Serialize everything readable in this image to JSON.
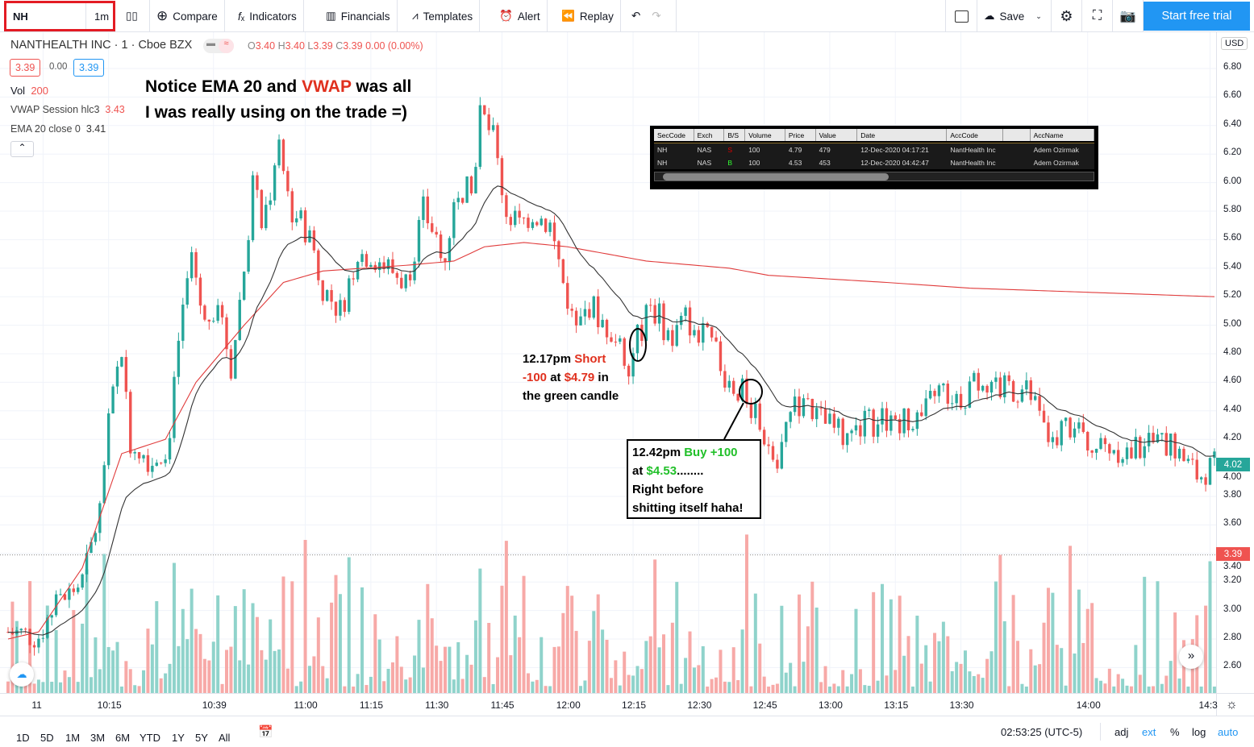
{
  "toolbar": {
    "symbol": "NH",
    "interval": "1m",
    "compare": "Compare",
    "indicators": "Indicators",
    "financials": "Financials",
    "templates": "Templates",
    "alert": "Alert",
    "replay": "Replay",
    "save": "Save",
    "trial": "Start free trial"
  },
  "legend": {
    "title": "NANTHEALTH INC · 1 · Cboe BZX",
    "o_label": "O",
    "o": "3.40",
    "h_label": "H",
    "h": "3.40",
    "l_label": "L",
    "l": "3.39",
    "c_label": "C",
    "c": "3.39",
    "change": "0.00 (0.00%)",
    "bid": "3.39",
    "spread": "0.00",
    "ask": "3.39",
    "vol_label": "Vol",
    "vol": "200",
    "vwap_label": "VWAP Session hlc3",
    "vwap": "3.43",
    "ema_label": "EMA 20 close 0",
    "ema": "3.41"
  },
  "annotations": {
    "headline_1a": "Notice EMA 20 and ",
    "headline_1b": "VWAP",
    "headline_1c": " was all",
    "headline_2": "I was really using on the trade =)",
    "short_1": "12.17pm ",
    "short_2": "Short",
    "short_3": "-100",
    "short_4": " at ",
    "short_5": "$4.79",
    "short_6": " in",
    "short_7": "the green candle",
    "buy_1": "12.42pm ",
    "buy_2": "Buy +100",
    "buy_3": "at ",
    "buy_4": "$4.53",
    "buy_5": "........",
    "buy_6": "Right before",
    "buy_7": "shitting itself haha!"
  },
  "trades": {
    "headers": [
      "SecCode",
      "Exch",
      "B/S",
      "Volume",
      "Price",
      "Value",
      "Date",
      "AccCode",
      "",
      "AccName"
    ],
    "rows": [
      [
        "NH",
        "NAS",
        "S",
        "100",
        "4.79",
        "479",
        "12-Dec-2020 04:17:21",
        "NantHealth Inc",
        "",
        "Adem Ozirmak"
      ],
      [
        "NH",
        "NAS",
        "B",
        "100",
        "4.53",
        "453",
        "12-Dec-2020 04:42:47",
        "NantHealth Inc",
        "",
        "Adem Ozirmak"
      ]
    ]
  },
  "price_scale": {
    "currency": "USD",
    "last": "4.02",
    "marker": "3.39",
    "ticks": [
      "6.80",
      "6.60",
      "6.40",
      "6.20",
      "6.00",
      "5.80",
      "5.60",
      "5.40",
      "5.20",
      "5.00",
      "4.80",
      "4.60",
      "4.40",
      "4.20",
      "4.00",
      "3.80",
      "3.60",
      "3.40",
      "3.20",
      "3.00",
      "2.80",
      "2.60"
    ]
  },
  "colors": {
    "up": "#26a69a",
    "down": "#ef5350",
    "vwap": "#e03b3b",
    "ema": "#333333",
    "accent": "#2196f3"
  },
  "chart_data": {
    "type": "candlestick",
    "ylim": [
      2.5,
      6.9
    ],
    "candle_count": 277,
    "close_path": [
      [
        0,
        2.85
      ],
      [
        7,
        2.82
      ],
      [
        10,
        3.0
      ],
      [
        17,
        3.2
      ],
      [
        21,
        3.7
      ],
      [
        23,
        4.3
      ],
      [
        26,
        4.85
      ],
      [
        28,
        4.2
      ],
      [
        33,
        4.05
      ],
      [
        37,
        4.2
      ],
      [
        39,
        4.9
      ],
      [
        42,
        5.5
      ],
      [
        45,
        5.0
      ],
      [
        48,
        5.2
      ],
      [
        51,
        4.7
      ],
      [
        54,
        5.4
      ],
      [
        56,
        6.0
      ],
      [
        58,
        5.7
      ],
      [
        62,
        6.2
      ],
      [
        65,
        5.8
      ],
      [
        70,
        5.6
      ],
      [
        71,
        5.3
      ],
      [
        76,
        5.1
      ],
      [
        80,
        5.5
      ],
      [
        83,
        5.5
      ],
      [
        87,
        5.4
      ],
      [
        91,
        5.3
      ],
      [
        95,
        5.8
      ],
      [
        100,
        5.5
      ],
      [
        103,
        6.0
      ],
      [
        106,
        5.9
      ],
      [
        108,
        6.5
      ],
      [
        111,
        6.3
      ],
      [
        114,
        5.8
      ],
      [
        117,
        5.7
      ],
      [
        120,
        5.8
      ],
      [
        124,
        5.7
      ],
      [
        127,
        5.3
      ],
      [
        130,
        4.95
      ],
      [
        133,
        5.15
      ],
      [
        138,
        4.95
      ],
      [
        142,
        4.75
      ],
      [
        146,
        5.05
      ],
      [
        148,
        5.1
      ],
      [
        152,
        4.9
      ],
      [
        155,
        5.05
      ],
      [
        161,
        4.85
      ],
      [
        165,
        4.6
      ],
      [
        169,
        4.5
      ],
      [
        172,
        4.3
      ],
      [
        176,
        4.0
      ],
      [
        178,
        4.3
      ],
      [
        181,
        4.45
      ],
      [
        185,
        4.35
      ],
      [
        192,
        4.2
      ],
      [
        196,
        4.3
      ],
      [
        200,
        4.35
      ],
      [
        205,
        4.35
      ],
      [
        209,
        4.35
      ],
      [
        213,
        4.55
      ],
      [
        218,
        4.5
      ],
      [
        223,
        4.65
      ],
      [
        227,
        4.55
      ],
      [
        233,
        4.55
      ],
      [
        238,
        4.2
      ],
      [
        242,
        4.3
      ],
      [
        248,
        4.15
      ],
      [
        253,
        4.15
      ],
      [
        257,
        4.1
      ],
      [
        260,
        4.2
      ],
      [
        266,
        4.15
      ],
      [
        272,
        3.95
      ],
      [
        276,
        4.02
      ]
    ],
    "vwap_path": [
      [
        0,
        2.8
      ],
      [
        7,
        2.85
      ],
      [
        17,
        3.3
      ],
      [
        26,
        4.1
      ],
      [
        36,
        4.2
      ],
      [
        43,
        4.6
      ],
      [
        54,
        5.0
      ],
      [
        63,
        5.3
      ],
      [
        72,
        5.38
      ],
      [
        91,
        5.42
      ],
      [
        102,
        5.45
      ],
      [
        109,
        5.55
      ],
      [
        118,
        5.58
      ],
      [
        128,
        5.55
      ],
      [
        146,
        5.45
      ],
      [
        165,
        5.4
      ],
      [
        174,
        5.35
      ],
      [
        201,
        5.3
      ],
      [
        220,
        5.26
      ],
      [
        276,
        5.2
      ]
    ],
    "ema_period": 20,
    "time_labels": [
      [
        8,
        "11"
      ],
      [
        23,
        "10:15"
      ],
      [
        47,
        "10:39"
      ],
      [
        68,
        "11:00"
      ],
      [
        83,
        "11:15"
      ],
      [
        98,
        "11:30"
      ],
      [
        113,
        "11:45"
      ],
      [
        128,
        "12:00"
      ],
      [
        143,
        "12:15"
      ],
      [
        158,
        "12:30"
      ],
      [
        173,
        "12:45"
      ],
      [
        188,
        "13:00"
      ],
      [
        203,
        "13:15"
      ],
      [
        218,
        "13:30"
      ],
      [
        247,
        "14:00"
      ],
      [
        275,
        "14:3"
      ]
    ]
  },
  "bottom": {
    "ranges": [
      "1D",
      "5D",
      "1M",
      "3M",
      "6M",
      "YTD",
      "1Y",
      "5Y",
      "All"
    ],
    "clock": "02:53:25 (UTC-5)",
    "adj": "adj",
    "ext": "ext",
    "pct": "%",
    "log": "log",
    "auto": "auto"
  }
}
